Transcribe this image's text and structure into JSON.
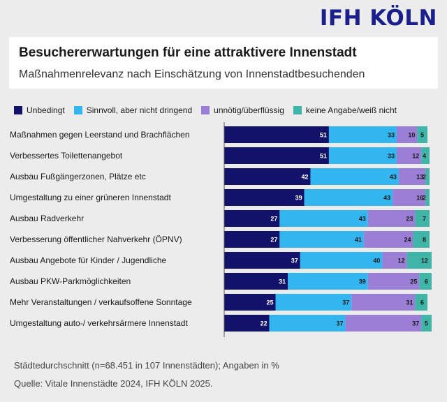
{
  "logo": "IFH KÖLN",
  "chart_data": {
    "type": "bar",
    "stacked": true,
    "orientation": "horizontal",
    "title": "Besuchererwartungen für eine attraktivere Innenstadt",
    "subtitle": "Maßnahmenrelevanz nach Einschätzung von Innenstadtbesuchenden",
    "xlim": [
      0,
      100
    ],
    "legend_position": "top",
    "categories": [
      "Maßnahmen gegen Leerstand und Brachflächen",
      "Verbessertes Toilettenangebot",
      "Ausbau Fußgängerzonen, Plätze etc",
      "Umgestaltung zu einer grüneren Innenstadt",
      "Ausbau Radverkehr",
      "Verbesserung öffentlicher Nahverkehr (ÖPNV)",
      "Ausbau Angebote für Kinder / Jugendliche",
      "Ausbau PKW-Parkmöglichkeiten",
      "Mehr Veranstaltungen / verkaufsoffene Sonntage",
      "Umgestaltung auto-/ verkehrsärmere Innenstadt"
    ],
    "series": [
      {
        "name": "Unbedingt",
        "color": "#12126b",
        "label_color": "#ffffff",
        "values": [
          51,
          51,
          42,
          39,
          27,
          27,
          37,
          31,
          25,
          22
        ]
      },
      {
        "name": "Sinnvoll, aber nicht dringend",
        "color": "#33b5ef",
        "label_color": "#1a1a1a",
        "values": [
          33,
          33,
          43,
          43,
          43,
          41,
          40,
          39,
          37,
          37
        ]
      },
      {
        "name": "unnötig/überflüssig",
        "color": "#9b7fd6",
        "label_color": "#1a1a1a",
        "values": [
          10,
          12,
          13,
          16,
          23,
          24,
          12,
          25,
          31,
          37
        ]
      },
      {
        "name": "keine Angabe/weiß nicht",
        "color": "#3fb5a8",
        "label_color": "#1a1a1a",
        "values": [
          5,
          4,
          2,
          2,
          7,
          8,
          12,
          6,
          6,
          5
        ]
      }
    ]
  },
  "footnote": "Städtedurchschnitt (n=68.451 in 107 Innenstädten); Angaben in %",
  "source": "Quelle: Vitale Innenstädte 2024, IFH KÖLN 2025."
}
